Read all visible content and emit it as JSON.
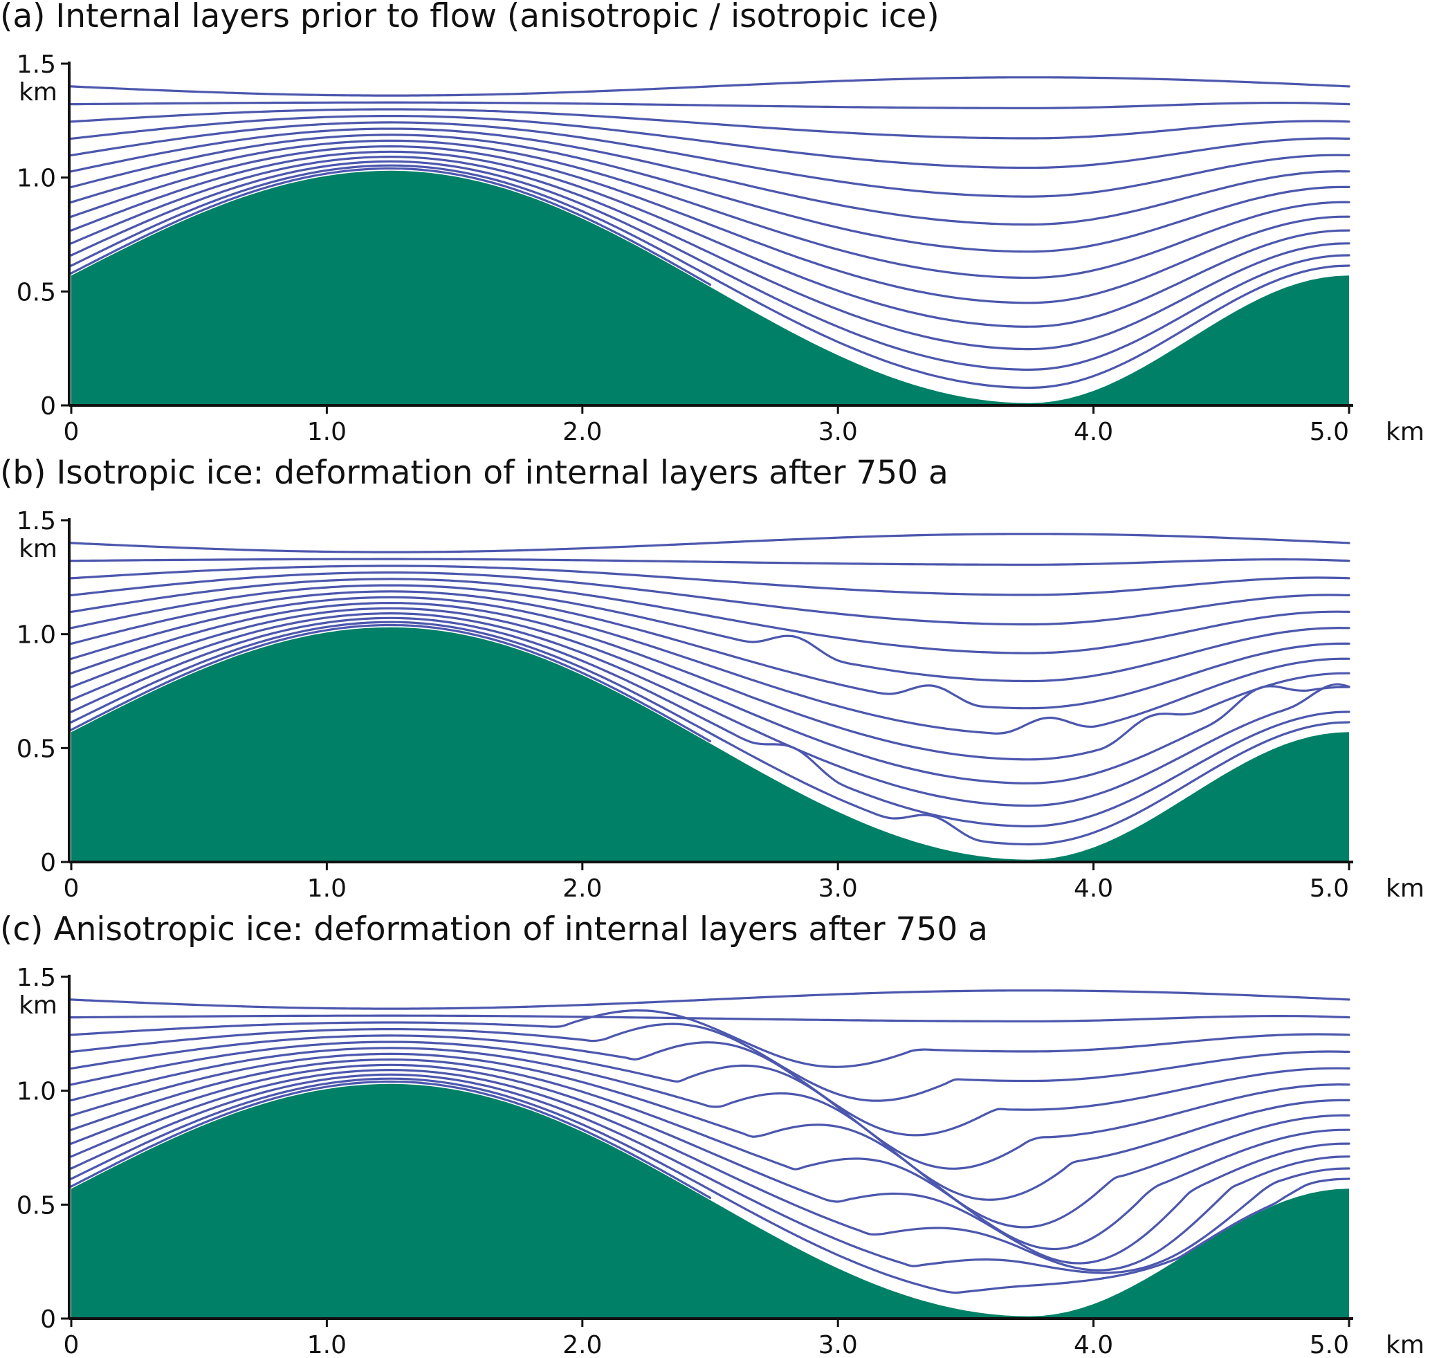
{
  "colors": {
    "bedrock": "#008066",
    "layer": "#4c57ad",
    "axis": "#111111"
  },
  "panels": [
    {
      "title": "(a) Internal layers prior to flow  (anisotropic / isotropic ice)",
      "mode": "initial"
    },
    {
      "title": "(b) Isotropic ice: deformation of internal layers after 750 a",
      "mode": "isotropic"
    },
    {
      "title": "(c) Anisotropic ice: deformation of internal layers after 750 a",
      "mode": "anisotropic"
    }
  ],
  "axes": {
    "x_ticks": [
      "0",
      "1.0",
      "2.0",
      "3.0",
      "4.0",
      "5.0"
    ],
    "x_unit": "km",
    "y_ticks": [
      "0",
      "0.5",
      "1.0",
      "1.5"
    ],
    "y_unit": "km"
  },
  "chart_data": [
    {
      "type": "line",
      "title": "(a) Internal layers prior to flow  (anisotropic / isotropic ice)",
      "xlim": [
        0,
        5.0
      ],
      "ylim": [
        0,
        1.5
      ],
      "bedrock_profile": {
        "x": [
          0,
          0.5,
          1.0,
          1.25,
          1.5,
          2.0,
          2.5,
          3.0,
          3.5,
          3.75,
          4.0,
          4.5,
          5.0
        ],
        "y": [
          0.57,
          0.77,
          0.97,
          1.03,
          0.99,
          0.82,
          0.55,
          0.29,
          0.05,
          0.01,
          0.04,
          0.24,
          0.57
        ]
      },
      "layer_count": 14,
      "top_layer_y_at_x0": 1.42
    },
    {
      "type": "line",
      "title": "(b) Isotropic ice: deformation of internal layers after 750 a",
      "xlim": [
        0,
        5.0
      ],
      "ylim": [
        0,
        1.5
      ],
      "layer_count": 14,
      "fold_noses_x": [
        2.68,
        3.22,
        3.67,
        4.07,
        4.5,
        4.8
      ]
    },
    {
      "type": "line",
      "title": "(c) Anisotropic ice: deformation of internal layers after 750 a",
      "xlim": [
        0,
        5.0
      ],
      "ylim": [
        0,
        1.5
      ],
      "layer_count": 14,
      "fold_noses_x": [
        1.9,
        2.5,
        3.0,
        3.4,
        3.75,
        4.05
      ]
    }
  ]
}
